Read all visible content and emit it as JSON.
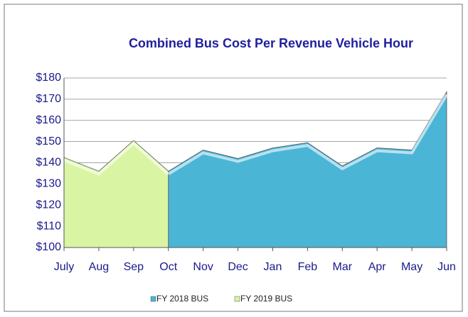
{
  "chart_data": {
    "type": "area",
    "title": "Combined Bus Cost Per Revenue Vehicle Hour",
    "categories": [
      "July",
      "Aug",
      "Sep",
      "Oct",
      "Nov",
      "Dec",
      "Jan",
      "Feb",
      "Mar",
      "Apr",
      "May",
      "Jun"
    ],
    "series": [
      {
        "name": "FY 2018  BUS",
        "color": "#4bb5d6",
        "values": [
          null,
          null,
          null,
          136,
          146,
          142,
          147,
          149.5,
          138.5,
          147,
          146,
          173.5
        ]
      },
      {
        "name": "FY 2019  BUS",
        "color": "#d9f5a3",
        "values": [
          142.5,
          136,
          150.5,
          136,
          null,
          null,
          null,
          null,
          null,
          null,
          null,
          null
        ]
      }
    ],
    "ylim": [
      100,
      180
    ],
    "yticks": [
      {
        "value": 100,
        "label": "$100"
      },
      {
        "value": 110,
        "label": "$110"
      },
      {
        "value": 120,
        "label": "$120"
      },
      {
        "value": 130,
        "label": "$130"
      },
      {
        "value": 140,
        "label": "$140"
      },
      {
        "value": 150,
        "label": "$150"
      },
      {
        "value": 160,
        "label": "$160"
      },
      {
        "value": 170,
        "label": "$170"
      },
      {
        "value": 180,
        "label": "$180"
      }
    ],
    "grid": true,
    "legend": "bottom"
  }
}
